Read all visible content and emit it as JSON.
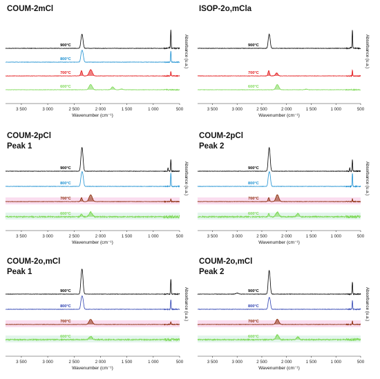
{
  "colors": {
    "900": "#000000",
    "800": "#1b8fd1",
    "800_dark": "#2b3fb0",
    "700": "#e31a1c",
    "700_dark": "#8b2a08",
    "700_band": "#f7c6e4",
    "600": "#7ed957",
    "600_band": "#cfeedd"
  },
  "chart_data": [
    {
      "type": "line",
      "title": "COUM-2mCl",
      "xlabel": "Wavenumber (cm⁻¹)",
      "ylabel": "Absorbance (u.a.)",
      "xlim": [
        3800,
        500
      ],
      "xticks": [
        "3 500",
        "3 000",
        "2 500",
        "2 000",
        "1 500",
        "1 000",
        "500"
      ],
      "variant": "plain",
      "series": [
        {
          "name": "900°C",
          "color_key": "900",
          "peaks": [
            [
              2360,
              0.95
            ],
            [
              2340,
              0.85
            ],
            [
              667,
              1.9
            ],
            [
              700,
              0.12
            ]
          ]
        },
        {
          "name": "800°C",
          "color_key": "800",
          "peaks": [
            [
              2360,
              0.9
            ],
            [
              2335,
              0.8
            ],
            [
              667,
              1.2
            ]
          ]
        },
        {
          "name": "700°C",
          "color_key": "700",
          "peaks": [
            [
              2360,
              0.55
            ],
            [
              2200,
              0.4
            ],
            [
              2170,
              0.38
            ],
            [
              667,
              0.5
            ]
          ]
        },
        {
          "name": "600°C",
          "color_key": "600",
          "peaks": [
            [
              2200,
              0.35
            ],
            [
              2170,
              0.3
            ],
            [
              1770,
              0.3
            ],
            [
              1600,
              0.08
            ]
          ]
        }
      ]
    },
    {
      "type": "line",
      "title": "ISOP-2o,mCla",
      "xlabel": "Wavenumber (cm⁻¹)",
      "ylabel": "Absorbance (u.a.)",
      "xlim": [
        3800,
        500
      ],
      "xticks": [
        "3 500",
        "3 000",
        "2 500",
        "2 000",
        "1 500",
        "1 000",
        "500"
      ],
      "variant": "plain",
      "series": [
        {
          "name": "900°C",
          "color_key": "900",
          "peaks": [
            [
              2360,
              0.95
            ],
            [
              2340,
              0.85
            ],
            [
              667,
              1.9
            ],
            [
              700,
              0.12
            ]
          ]
        },
        {
          "name": "800°C",
          "color_key": "800",
          "peaks": []
        },
        {
          "name": "700°C",
          "color_key": "700",
          "peaks": [
            [
              2360,
              0.55
            ],
            [
              2200,
              0.3
            ],
            [
              667,
              0.6
            ]
          ]
        },
        {
          "name": "600°C",
          "color_key": "600",
          "peaks": [
            [
              2200,
              0.35
            ],
            [
              2170,
              0.3
            ],
            [
              1600,
              0.06
            ]
          ]
        }
      ]
    },
    {
      "type": "line",
      "title": "COUM-2pCl",
      "subtitle": "Peak 1",
      "xlabel": "Wavenumber (cm⁻¹)",
      "ylabel": "Absorbance (u.a.)",
      "xlim": [
        3800,
        500
      ],
      "xticks": [
        "3 500",
        "3 000",
        "2 500",
        "2 000",
        "1 500",
        "1 000",
        "500"
      ],
      "variant": "band",
      "series": [
        {
          "name": "900°C",
          "color_key": "900",
          "peaks": [
            [
              2360,
              1.6
            ],
            [
              2340,
              1.4
            ],
            [
              667,
              1.2
            ],
            [
              720,
              0.35
            ]
          ]
        },
        {
          "name": "800°C",
          "color_key": "800",
          "peaks": [
            [
              2360,
              1.1
            ],
            [
              2335,
              1.0
            ],
            [
              667,
              1.4
            ]
          ]
        },
        {
          "name": "700°C",
          "color_key": "700_dark",
          "peaks": [
            [
              2360,
              0.4
            ],
            [
              2200,
              0.45
            ],
            [
              2170,
              0.4
            ],
            [
              667,
              0.3
            ]
          ]
        },
        {
          "name": "600°C",
          "color_key": "600",
          "peaks": [
            [
              2360,
              0.3
            ],
            [
              2200,
              0.3
            ],
            [
              2170,
              0.28
            ]
          ]
        }
      ]
    },
    {
      "type": "line",
      "title": "COUM-2pCl",
      "subtitle": "Peak 2",
      "xlabel": "Wavenumber (cm⁻¹)",
      "ylabel": "Absorbance (u.a.)",
      "xlim": [
        3800,
        500
      ],
      "xticks": [
        "3 500",
        "3 000",
        "2 500",
        "2 000",
        "1 500",
        "1 000",
        "500"
      ],
      "variant": "band",
      "series": [
        {
          "name": "900°C",
          "color_key": "900",
          "peaks": [
            [
              2360,
              1.6
            ],
            [
              2340,
              1.4
            ],
            [
              667,
              1.2
            ],
            [
              720,
              0.35
            ]
          ]
        },
        {
          "name": "800°C",
          "color_key": "800",
          "peaks": [
            [
              2360,
              1.1
            ],
            [
              2335,
              1.0
            ],
            [
              667,
              1.4
            ]
          ]
        },
        {
          "name": "700°C",
          "color_key": "700_dark",
          "peaks": [
            [
              2360,
              0.4
            ],
            [
              2200,
              0.45
            ],
            [
              2170,
              0.4
            ],
            [
              667,
              0.3
            ]
          ]
        },
        {
          "name": "600°C",
          "color_key": "600",
          "peaks": [
            [
              2360,
              0.3
            ],
            [
              2200,
              0.3
            ],
            [
              2170,
              0.28
            ],
            [
              1770,
              0.35
            ]
          ]
        }
      ]
    },
    {
      "type": "line",
      "title": "COUM-2o,mCl",
      "subtitle": "Peak 1",
      "xlabel": "Wavenumber (cm⁻¹)",
      "ylabel": "Absorbance (u.a.)",
      "xlim": [
        3800,
        500
      ],
      "xticks": [
        "3 500",
        "3 000",
        "2 500",
        "2 000",
        "1 500",
        "1 000",
        "500"
      ],
      "variant": "band",
      "series": [
        {
          "name": "900°C",
          "color_key": "900",
          "peaks": [
            [
              2360,
              1.7
            ],
            [
              2340,
              1.5
            ],
            [
              667,
              1.6
            ]
          ]
        },
        {
          "name": "800°C",
          "color_key": "800_dark",
          "peaks": [
            [
              2360,
              1.0
            ],
            [
              2335,
              0.9
            ],
            [
              667,
              1.0
            ]
          ]
        },
        {
          "name": "700°C",
          "color_key": "700_dark",
          "peaks": [
            [
              2200,
              0.35
            ],
            [
              2170,
              0.3
            ],
            [
              667,
              0.3
            ]
          ]
        },
        {
          "name": "600°C",
          "color_key": "600",
          "peaks": [
            [
              2200,
              0.2
            ],
            [
              2170,
              0.18
            ]
          ]
        }
      ]
    },
    {
      "type": "line",
      "title": "COUM-2o,mCl",
      "subtitle": "Peak 2",
      "xlabel": "Wavenumber (cm⁻¹)",
      "ylabel": "Absorbance (u.a.)",
      "xlim": [
        3800,
        500
      ],
      "xticks": [
        "3 500",
        "3 000",
        "2 500",
        "2 000",
        "1 500",
        "1 000",
        "500"
      ],
      "variant": "band",
      "series": [
        {
          "name": "900°C",
          "color_key": "900",
          "peaks": [
            [
              2360,
              1.6
            ],
            [
              2340,
              1.4
            ],
            [
              667,
              1.3
            ],
            [
              3000,
              0.1
            ]
          ]
        },
        {
          "name": "800°C",
          "color_key": "800_dark",
          "peaks": [
            [
              2360,
              0.9
            ],
            [
              2335,
              0.8
            ],
            [
              667,
              0.9
            ]
          ]
        },
        {
          "name": "700°C",
          "color_key": "700_dark",
          "peaks": [
            [
              2200,
              0.35
            ],
            [
              2170,
              0.3
            ],
            [
              667,
              0.4
            ]
          ]
        },
        {
          "name": "600°C",
          "color_key": "600",
          "peaks": [
            [
              2200,
              0.3
            ],
            [
              2170,
              0.28
            ],
            [
              1770,
              0.3
            ]
          ]
        }
      ]
    }
  ]
}
